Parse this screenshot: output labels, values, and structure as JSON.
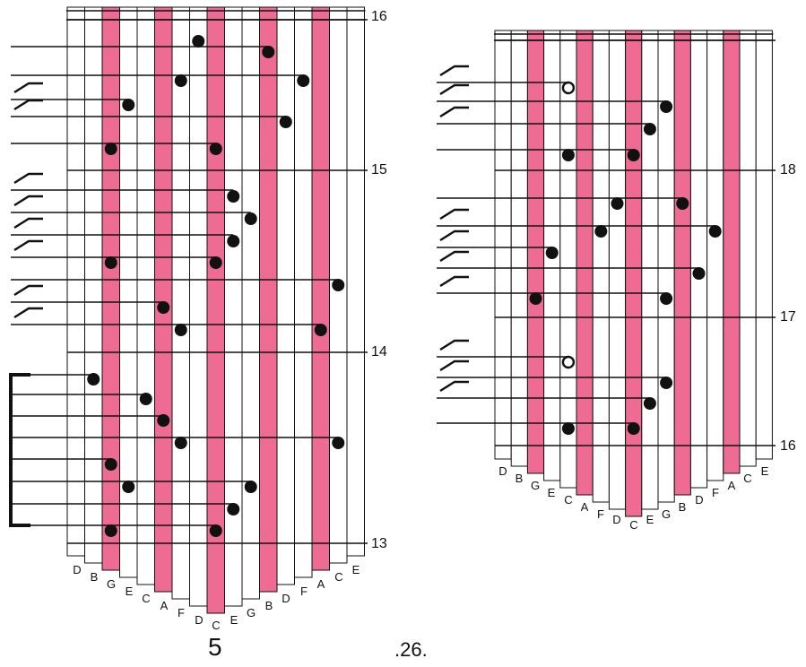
{
  "colors": {
    "accent_tine": "#ee6b94",
    "ink": "#111111",
    "background": "#ffffff"
  },
  "tine_notes": [
    "D",
    "B",
    "G",
    "E",
    "C",
    "A",
    "F",
    "D",
    "C",
    "E",
    "G",
    "B",
    "D",
    "F",
    "A",
    "C",
    "E"
  ],
  "panels": [
    {
      "id": "left",
      "measure_labels": [
        "16",
        "15",
        "14",
        "13"
      ]
    },
    {
      "id": "right",
      "measure_labels": [
        "18",
        "17",
        "16"
      ]
    }
  ],
  "footer": {
    "page_number": "5",
    "item_number": ".26."
  }
}
